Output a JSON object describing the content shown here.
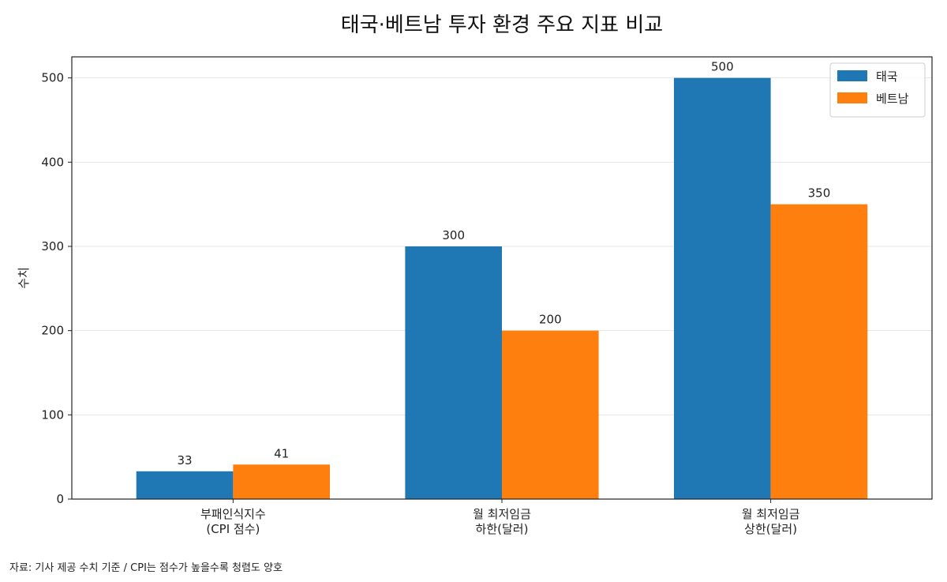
{
  "chart_data": {
    "type": "bar",
    "title": "태국·베트남 투자 환경 주요 지표 비교",
    "xlabel": "",
    "ylabel": "수치",
    "categories": [
      [
        "부패인식지수",
        "(CPI 점수)"
      ],
      [
        "월 최저임금",
        "하한(달러)"
      ],
      [
        "월 최저임금",
        "상한(달러)"
      ]
    ],
    "series": [
      {
        "name": "태국",
        "color": "#1f77b4",
        "values": [
          33,
          300,
          500
        ]
      },
      {
        "name": "베트남",
        "color": "#ff7f0e",
        "values": [
          41,
          200,
          350
        ]
      }
    ],
    "ylim": [
      0,
      525
    ],
    "yticks": [
      0,
      100,
      200,
      300,
      400,
      500
    ],
    "grid": "y",
    "legend_position": "top-right",
    "data_labels": true
  },
  "footnote": "자료: 기사 제공 수치 기준 / CPI는 점수가 높을수록 청렴도 양호"
}
